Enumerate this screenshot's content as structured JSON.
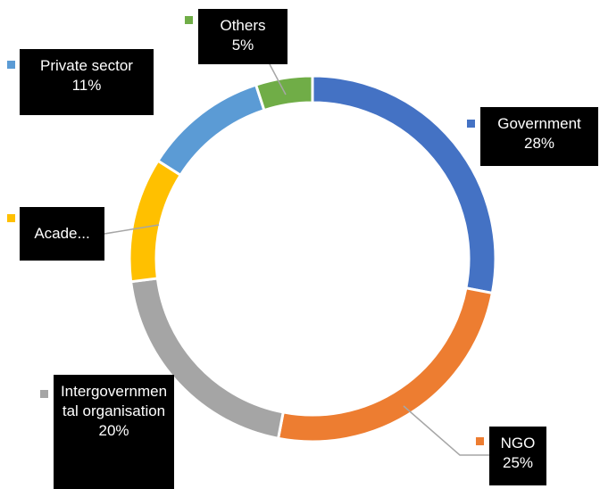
{
  "chart_data": {
    "type": "donut",
    "categories": [
      "Government",
      "NGO",
      "Intergovernmental organisation",
      "Acade...",
      "Private sector",
      "Others"
    ],
    "values": [
      28,
      25,
      20,
      11,
      11,
      5
    ],
    "value_labels": [
      "28%",
      "25%",
      "20%",
      null,
      "11%",
      "5%"
    ],
    "colors": [
      "#4472c4",
      "#ed7d31",
      "#a5a5a5",
      "#ffc000",
      "#5b9bd5",
      "#70ad47"
    ]
  }
}
